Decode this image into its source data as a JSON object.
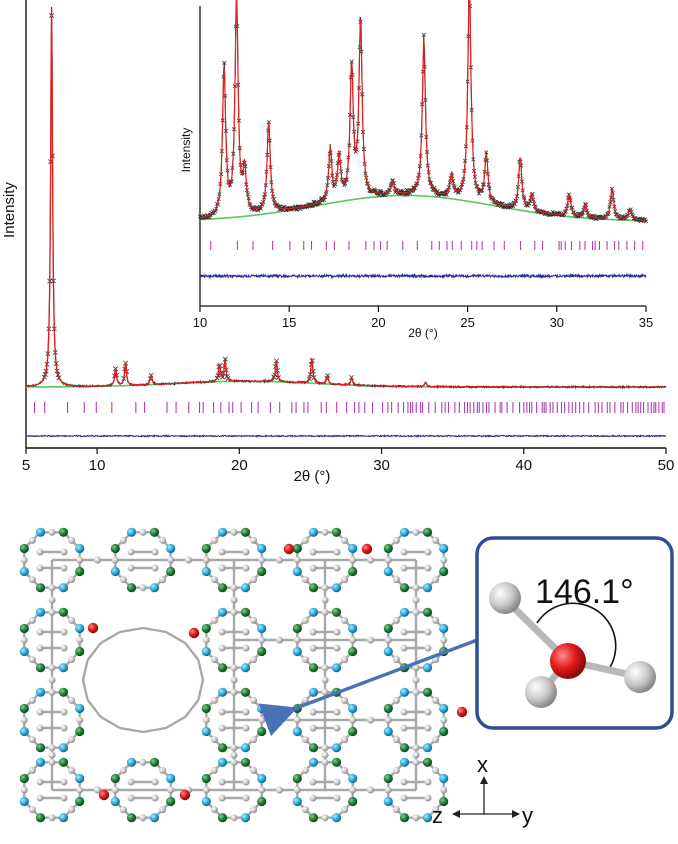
{
  "chart_data": [
    {
      "type": "line",
      "panel": "main",
      "xlabel": "2θ (°)",
      "ylabel": "Intensity",
      "xlim": [
        5,
        50
      ],
      "xticks": [
        "5",
        "10",
        "20",
        "30",
        "40",
        "50"
      ],
      "series_colors": {
        "observed": "#222222",
        "calculated": "#e02020",
        "background": "#5cc85c",
        "reflections": "#b040b0",
        "difference": "#2a2a9a"
      },
      "peaks": [
        {
          "x": 6.8,
          "y": 1.0
        },
        {
          "x": 11.3,
          "y": 0.045
        },
        {
          "x": 12.0,
          "y": 0.06
        },
        {
          "x": 13.8,
          "y": 0.025
        },
        {
          "x": 18.6,
          "y": 0.045
        },
        {
          "x": 19.0,
          "y": 0.055
        },
        {
          "x": 22.6,
          "y": 0.055
        },
        {
          "x": 25.1,
          "y": 0.065
        },
        {
          "x": 26.2,
          "y": 0.02
        },
        {
          "x": 27.9,
          "y": 0.018
        },
        {
          "x": 33.1,
          "y": 0.012
        }
      ],
      "background": {
        "baseline": 0.008,
        "hump_center": 20.5,
        "hump_height": 0.015
      }
    },
    {
      "type": "line",
      "panel": "inset",
      "xlabel": "2θ (°)",
      "ylabel": "Intensity",
      "xlim": [
        10,
        35
      ],
      "xticks": [
        "10",
        "15",
        "20",
        "25",
        "30",
        "35"
      ],
      "peaks": [
        {
          "x": 11.35,
          "y": 0.68
        },
        {
          "x": 12.05,
          "y": 1.0
        },
        {
          "x": 12.5,
          "y": 0.2
        },
        {
          "x": 13.85,
          "y": 0.42
        },
        {
          "x": 17.3,
          "y": 0.24
        },
        {
          "x": 17.8,
          "y": 0.2
        },
        {
          "x": 18.5,
          "y": 0.6
        },
        {
          "x": 19.0,
          "y": 0.8
        },
        {
          "x": 20.8,
          "y": 0.06
        },
        {
          "x": 22.55,
          "y": 0.72
        },
        {
          "x": 24.1,
          "y": 0.1
        },
        {
          "x": 25.1,
          "y": 1.0
        },
        {
          "x": 26.05,
          "y": 0.22
        },
        {
          "x": 27.95,
          "y": 0.24
        },
        {
          "x": 28.6,
          "y": 0.08
        },
        {
          "x": 30.7,
          "y": 0.1
        },
        {
          "x": 31.6,
          "y": 0.06
        },
        {
          "x": 33.1,
          "y": 0.14
        },
        {
          "x": 34.1,
          "y": 0.05
        }
      ],
      "background": {
        "baseline": 0.05,
        "hump_center": 21.5,
        "hump_height": 0.12
      }
    }
  ],
  "structure": {
    "angle_label": "146.1°",
    "axes": {
      "x": "x",
      "y": "y",
      "z": "z"
    },
    "atom_colors": {
      "linker": "#d0d0d0",
      "nitrogen": "#2aa8d8",
      "oxygen_ring": "#1e7a36",
      "bridging_oxygen": "#d81e2a"
    },
    "callout_border": "#2d4f93",
    "arrow_color": "#4a72b8"
  }
}
